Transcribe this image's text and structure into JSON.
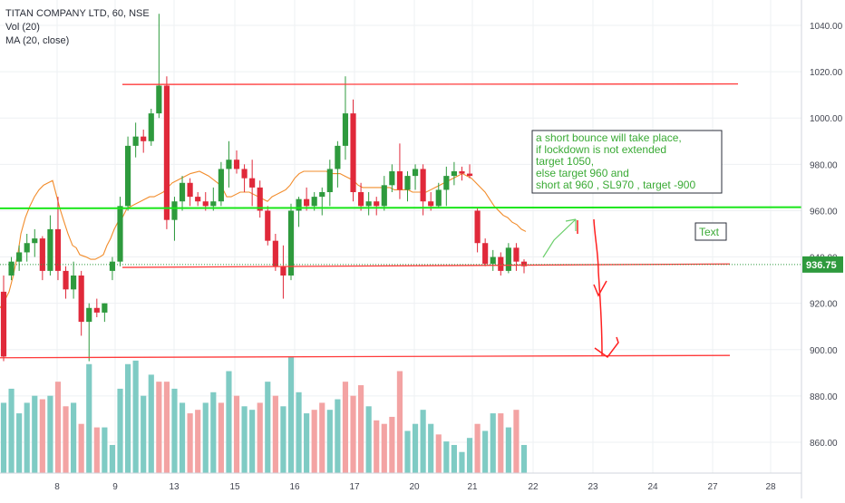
{
  "legend": {
    "symbol": "TITAN COMPANY LTD, 60, NSE",
    "volume": "Vol (20)",
    "ma": "MA (20, close)"
  },
  "price_tag": "936.75",
  "annotation_box": [
    "a short bounce will take place,",
    "if lockdown is not extended",
    "target 1050,",
    "else target 960 and",
    "short at 960 , SL970 , target -900"
  ],
  "text_box": "Text",
  "colors": {
    "up": "#2e9a3d",
    "down": "#e0293a",
    "vol_up": "#7fcbc4",
    "vol_down": "#f3a3a3",
    "ma": "#f28c2b",
    "support_line": "#ff3b3b",
    "level_line": "#19e619",
    "annotation_text": "#3aaa35",
    "arrow_up": "#6ccf6c",
    "arrow_down": "#ff2020"
  },
  "chart_data": {
    "type": "candlestick",
    "title": "TITAN COMPANY LTD, 60, NSE",
    "x_ticks": [
      "8",
      "9",
      "13",
      "15",
      "16",
      "17",
      "20",
      "21",
      "22",
      "23",
      "24",
      "27",
      "28"
    ],
    "y_ticks": [
      "860.00",
      "880.00",
      "900.00",
      "920.00",
      "940.00",
      "960.00",
      "980.00",
      "1000.00",
      "1020.00",
      "1040.00"
    ],
    "ylim": [
      850,
      1045
    ],
    "last_price": 936.75,
    "candles": [
      [
        925,
        932,
        895,
        897
      ],
      [
        932,
        940,
        930,
        938
      ],
      [
        938,
        945,
        934,
        942
      ],
      [
        942,
        950,
        938,
        946
      ],
      [
        946,
        952,
        940,
        948
      ],
      [
        948,
        949,
        930,
        934
      ],
      [
        934,
        958,
        932,
        952
      ],
      [
        952,
        966,
        930,
        934
      ],
      [
        934,
        936,
        922,
        926
      ],
      [
        926,
        938,
        922,
        932
      ],
      [
        932,
        934,
        906,
        912
      ],
      [
        912,
        920,
        895,
        918
      ],
      [
        918,
        922,
        914,
        916
      ],
      [
        916,
        920,
        912,
        920
      ],
      [
        934,
        940,
        930,
        938
      ],
      [
        938,
        966,
        936,
        962
      ],
      [
        962,
        992,
        960,
        988
      ],
      [
        988,
        998,
        983,
        992
      ],
      [
        992,
        995,
        985,
        990
      ],
      [
        990,
        1004,
        988,
        1002
      ],
      [
        1002,
        1045,
        1000,
        1014
      ],
      [
        1014,
        1018,
        952,
        956
      ],
      [
        956,
        966,
        947,
        964
      ],
      [
        964,
        975,
        960,
        972
      ],
      [
        972,
        974,
        962,
        966
      ],
      [
        966,
        968,
        962,
        964
      ],
      [
        964,
        968,
        960,
        962
      ],
      [
        962,
        970,
        960,
        964
      ],
      [
        964,
        981,
        962,
        978
      ],
      [
        978,
        990,
        970,
        982
      ],
      [
        982,
        986,
        976,
        978
      ],
      [
        978,
        980,
        968,
        974
      ],
      [
        974,
        982,
        962,
        970
      ],
      [
        970,
        973,
        957,
        960
      ],
      [
        960,
        962,
        945,
        947
      ],
      [
        947,
        950,
        934,
        936
      ],
      [
        936,
        945,
        922,
        932
      ],
      [
        932,
        963,
        930,
        960
      ],
      [
        960,
        966,
        953,
        965
      ],
      [
        965,
        970,
        960,
        962
      ],
      [
        962,
        968,
        960,
        966
      ],
      [
        966,
        970,
        958,
        968
      ],
      [
        968,
        982,
        962,
        978
      ],
      [
        978,
        990,
        970,
        988
      ],
      [
        988,
        1018,
        982,
        1002
      ],
      [
        1002,
        1008,
        964,
        968
      ],
      [
        968,
        972,
        960,
        962
      ],
      [
        962,
        968,
        958,
        964
      ],
      [
        964,
        966,
        958,
        962
      ],
      [
        962,
        975,
        960,
        971
      ],
      [
        971,
        980,
        968,
        977
      ],
      [
        977,
        989,
        965,
        969
      ],
      [
        969,
        977,
        964,
        975
      ],
      [
        975,
        980,
        969,
        978
      ],
      [
        978,
        980,
        958,
        964
      ],
      [
        964,
        968,
        960,
        962
      ],
      [
        962,
        972,
        961,
        969
      ],
      [
        969,
        979,
        962,
        975
      ],
      [
        975,
        981,
        971,
        977
      ],
      [
        977,
        979,
        973,
        976
      ],
      [
        976,
        980,
        974,
        975
      ],
      [
        960,
        961,
        942,
        946
      ],
      [
        946,
        948,
        936,
        937
      ],
      [
        937,
        943,
        934,
        940
      ],
      [
        940,
        942,
        932,
        934
      ],
      [
        934,
        946,
        933,
        944
      ],
      [
        944,
        946,
        934,
        938
      ],
      [
        938,
        939,
        933,
        936
      ]
    ],
    "volume": [
      [
        20,
        1
      ],
      [
        24,
        1
      ],
      [
        17,
        1
      ],
      [
        20,
        1
      ],
      [
        22,
        1
      ],
      [
        21,
        0
      ],
      [
        22,
        1
      ],
      [
        26,
        0
      ],
      [
        19,
        0
      ],
      [
        20,
        1
      ],
      [
        14,
        0
      ],
      [
        31,
        1
      ],
      [
        13,
        0
      ],
      [
        13,
        1
      ],
      [
        8,
        1
      ],
      [
        24,
        1
      ],
      [
        31,
        1
      ],
      [
        32,
        1
      ],
      [
        22,
        1
      ],
      [
        28,
        1
      ],
      [
        26,
        0
      ],
      [
        26,
        0
      ],
      [
        24,
        1
      ],
      [
        20,
        1
      ],
      [
        17,
        0
      ],
      [
        18,
        0
      ],
      [
        20,
        1
      ],
      [
        23,
        1
      ],
      [
        20,
        0
      ],
      [
        29,
        1
      ],
      [
        22,
        0
      ],
      [
        19,
        1
      ],
      [
        18,
        1
      ],
      [
        20,
        0
      ],
      [
        26,
        1
      ],
      [
        22,
        0
      ],
      [
        19,
        1
      ],
      [
        33,
        1
      ],
      [
        23,
        1
      ],
      [
        17,
        1
      ],
      [
        18,
        0
      ],
      [
        20,
        0
      ],
      [
        18,
        1
      ],
      [
        21,
        1
      ],
      [
        26,
        0
      ],
      [
        22,
        0
      ],
      [
        25,
        0
      ],
      [
        19,
        1
      ],
      [
        15,
        0
      ],
      [
        14,
        0
      ],
      [
        16,
        0
      ],
      [
        29,
        0
      ],
      [
        12,
        1
      ],
      [
        14,
        1
      ],
      [
        18,
        1
      ],
      [
        14,
        1
      ],
      [
        11,
        0
      ],
      [
        9,
        1
      ],
      [
        8,
        1
      ],
      [
        6,
        1
      ],
      [
        10,
        1
      ],
      [
        14,
        0
      ],
      [
        12,
        1
      ],
      [
        17,
        1
      ],
      [
        17,
        0
      ],
      [
        13,
        1
      ],
      [
        18,
        0
      ],
      [
        8,
        1
      ]
    ],
    "ma": [
      [
        0,
        918
      ],
      [
        5,
        921
      ],
      [
        10,
        925
      ],
      [
        14,
        931
      ],
      [
        20,
        942
      ],
      [
        23,
        950
      ],
      [
        28,
        957
      ],
      [
        33,
        962
      ],
      [
        38,
        966
      ],
      [
        43,
        969
      ],
      [
        48,
        971
      ],
      [
        53,
        972
      ],
      [
        58,
        973
      ],
      [
        62,
        967
      ],
      [
        66,
        961
      ],
      [
        70,
        956
      ],
      [
        75,
        950
      ],
      [
        80,
        945
      ],
      [
        84,
        944
      ],
      [
        88,
        941
      ],
      [
        95,
        940
      ],
      [
        100,
        939
      ],
      [
        105,
        939
      ],
      [
        110,
        940
      ],
      [
        114,
        941
      ],
      [
        118,
        945
      ],
      [
        122,
        948
      ],
      [
        126,
        952
      ],
      [
        130,
        955
      ],
      [
        135,
        957
      ],
      [
        140,
        961
      ],
      [
        145,
        962
      ],
      [
        150,
        963
      ],
      [
        155,
        964
      ],
      [
        160,
        965
      ],
      [
        165,
        966
      ],
      [
        170,
        966
      ],
      [
        175,
        967
      ],
      [
        180,
        968
      ],
      [
        185,
        970
      ],
      [
        190,
        972
      ],
      [
        195,
        973
      ],
      [
        200,
        974
      ],
      [
        210,
        976
      ],
      [
        220,
        977
      ],
      [
        230,
        975
      ],
      [
        240,
        972
      ],
      [
        245,
        970
      ],
      [
        250,
        966
      ],
      [
        255,
        966
      ],
      [
        260,
        967
      ],
      [
        265,
        968
      ],
      [
        270,
        968
      ],
      [
        275,
        968
      ],
      [
        280,
        967
      ],
      [
        285,
        966
      ],
      [
        290,
        965
      ],
      [
        295,
        964
      ],
      [
        300,
        966
      ],
      [
        305,
        967
      ],
      [
        310,
        968
      ],
      [
        315,
        969
      ],
      [
        320,
        971
      ],
      [
        325,
        974
      ],
      [
        330,
        976
      ],
      [
        335,
        977
      ],
      [
        340,
        977
      ],
      [
        345,
        977
      ],
      [
        350,
        977
      ],
      [
        355,
        977
      ],
      [
        360,
        977
      ],
      [
        365,
        976
      ],
      [
        370,
        976
      ],
      [
        375,
        976
      ],
      [
        380,
        975
      ],
      [
        385,
        974
      ],
      [
        390,
        973
      ],
      [
        395,
        971
      ],
      [
        400,
        970
      ],
      [
        405,
        970
      ],
      [
        410,
        970
      ],
      [
        415,
        970
      ],
      [
        420,
        970
      ],
      [
        425,
        970
      ],
      [
        430,
        970
      ],
      [
        435,
        969
      ],
      [
        440,
        969
      ],
      [
        445,
        969
      ],
      [
        450,
        969
      ],
      [
        455,
        968
      ],
      [
        460,
        968
      ],
      [
        465,
        968
      ],
      [
        470,
        968
      ],
      [
        475,
        969
      ],
      [
        480,
        970
      ],
      [
        485,
        971
      ],
      [
        490,
        972
      ],
      [
        495,
        973
      ],
      [
        500,
        974
      ],
      [
        505,
        975
      ],
      [
        510,
        976
      ],
      [
        515,
        975
      ],
      [
        520,
        974
      ],
      [
        525,
        972
      ],
      [
        530,
        970
      ],
      [
        535,
        968
      ],
      [
        540,
        965
      ],
      [
        545,
        962
      ],
      [
        550,
        960
      ],
      [
        555,
        958
      ],
      [
        560,
        957
      ],
      [
        565,
        955
      ],
      [
        570,
        954
      ],
      [
        575,
        952
      ],
      [
        580,
        951
      ]
    ],
    "lines": [
      {
        "name": "resistance",
        "value": 1014.5
      },
      {
        "name": "level-960",
        "value": 961
      },
      {
        "name": "support",
        "value": 936
      },
      {
        "name": "target-900",
        "value": 897
      }
    ]
  }
}
